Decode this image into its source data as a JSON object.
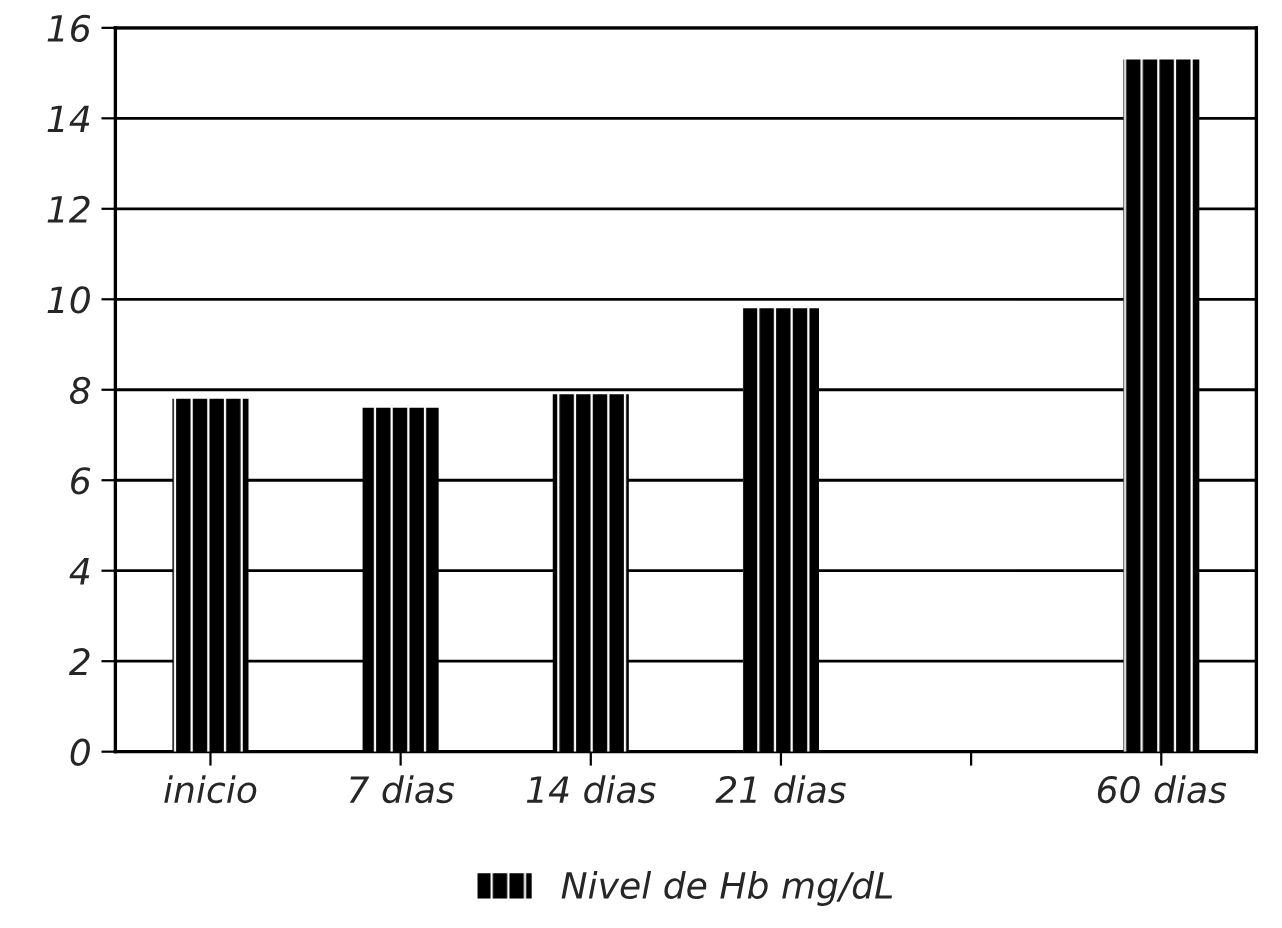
{
  "chart_data": {
    "type": "bar",
    "categories": [
      "inicio",
      "7 dias",
      "14 dias",
      "21 dias",
      null,
      "60 dias"
    ],
    "series": [
      {
        "name": "Nivel de Hb mg/dL",
        "color": "#000000",
        "values": [
          7.8,
          7.6,
          7.9,
          9.8,
          null,
          15.3
        ]
      }
    ],
    "ylim": [
      0,
      16
    ],
    "yticks": [
      0,
      2,
      4,
      6,
      8,
      10,
      12,
      14,
      16
    ],
    "grid": "y",
    "legend": "bottom"
  }
}
